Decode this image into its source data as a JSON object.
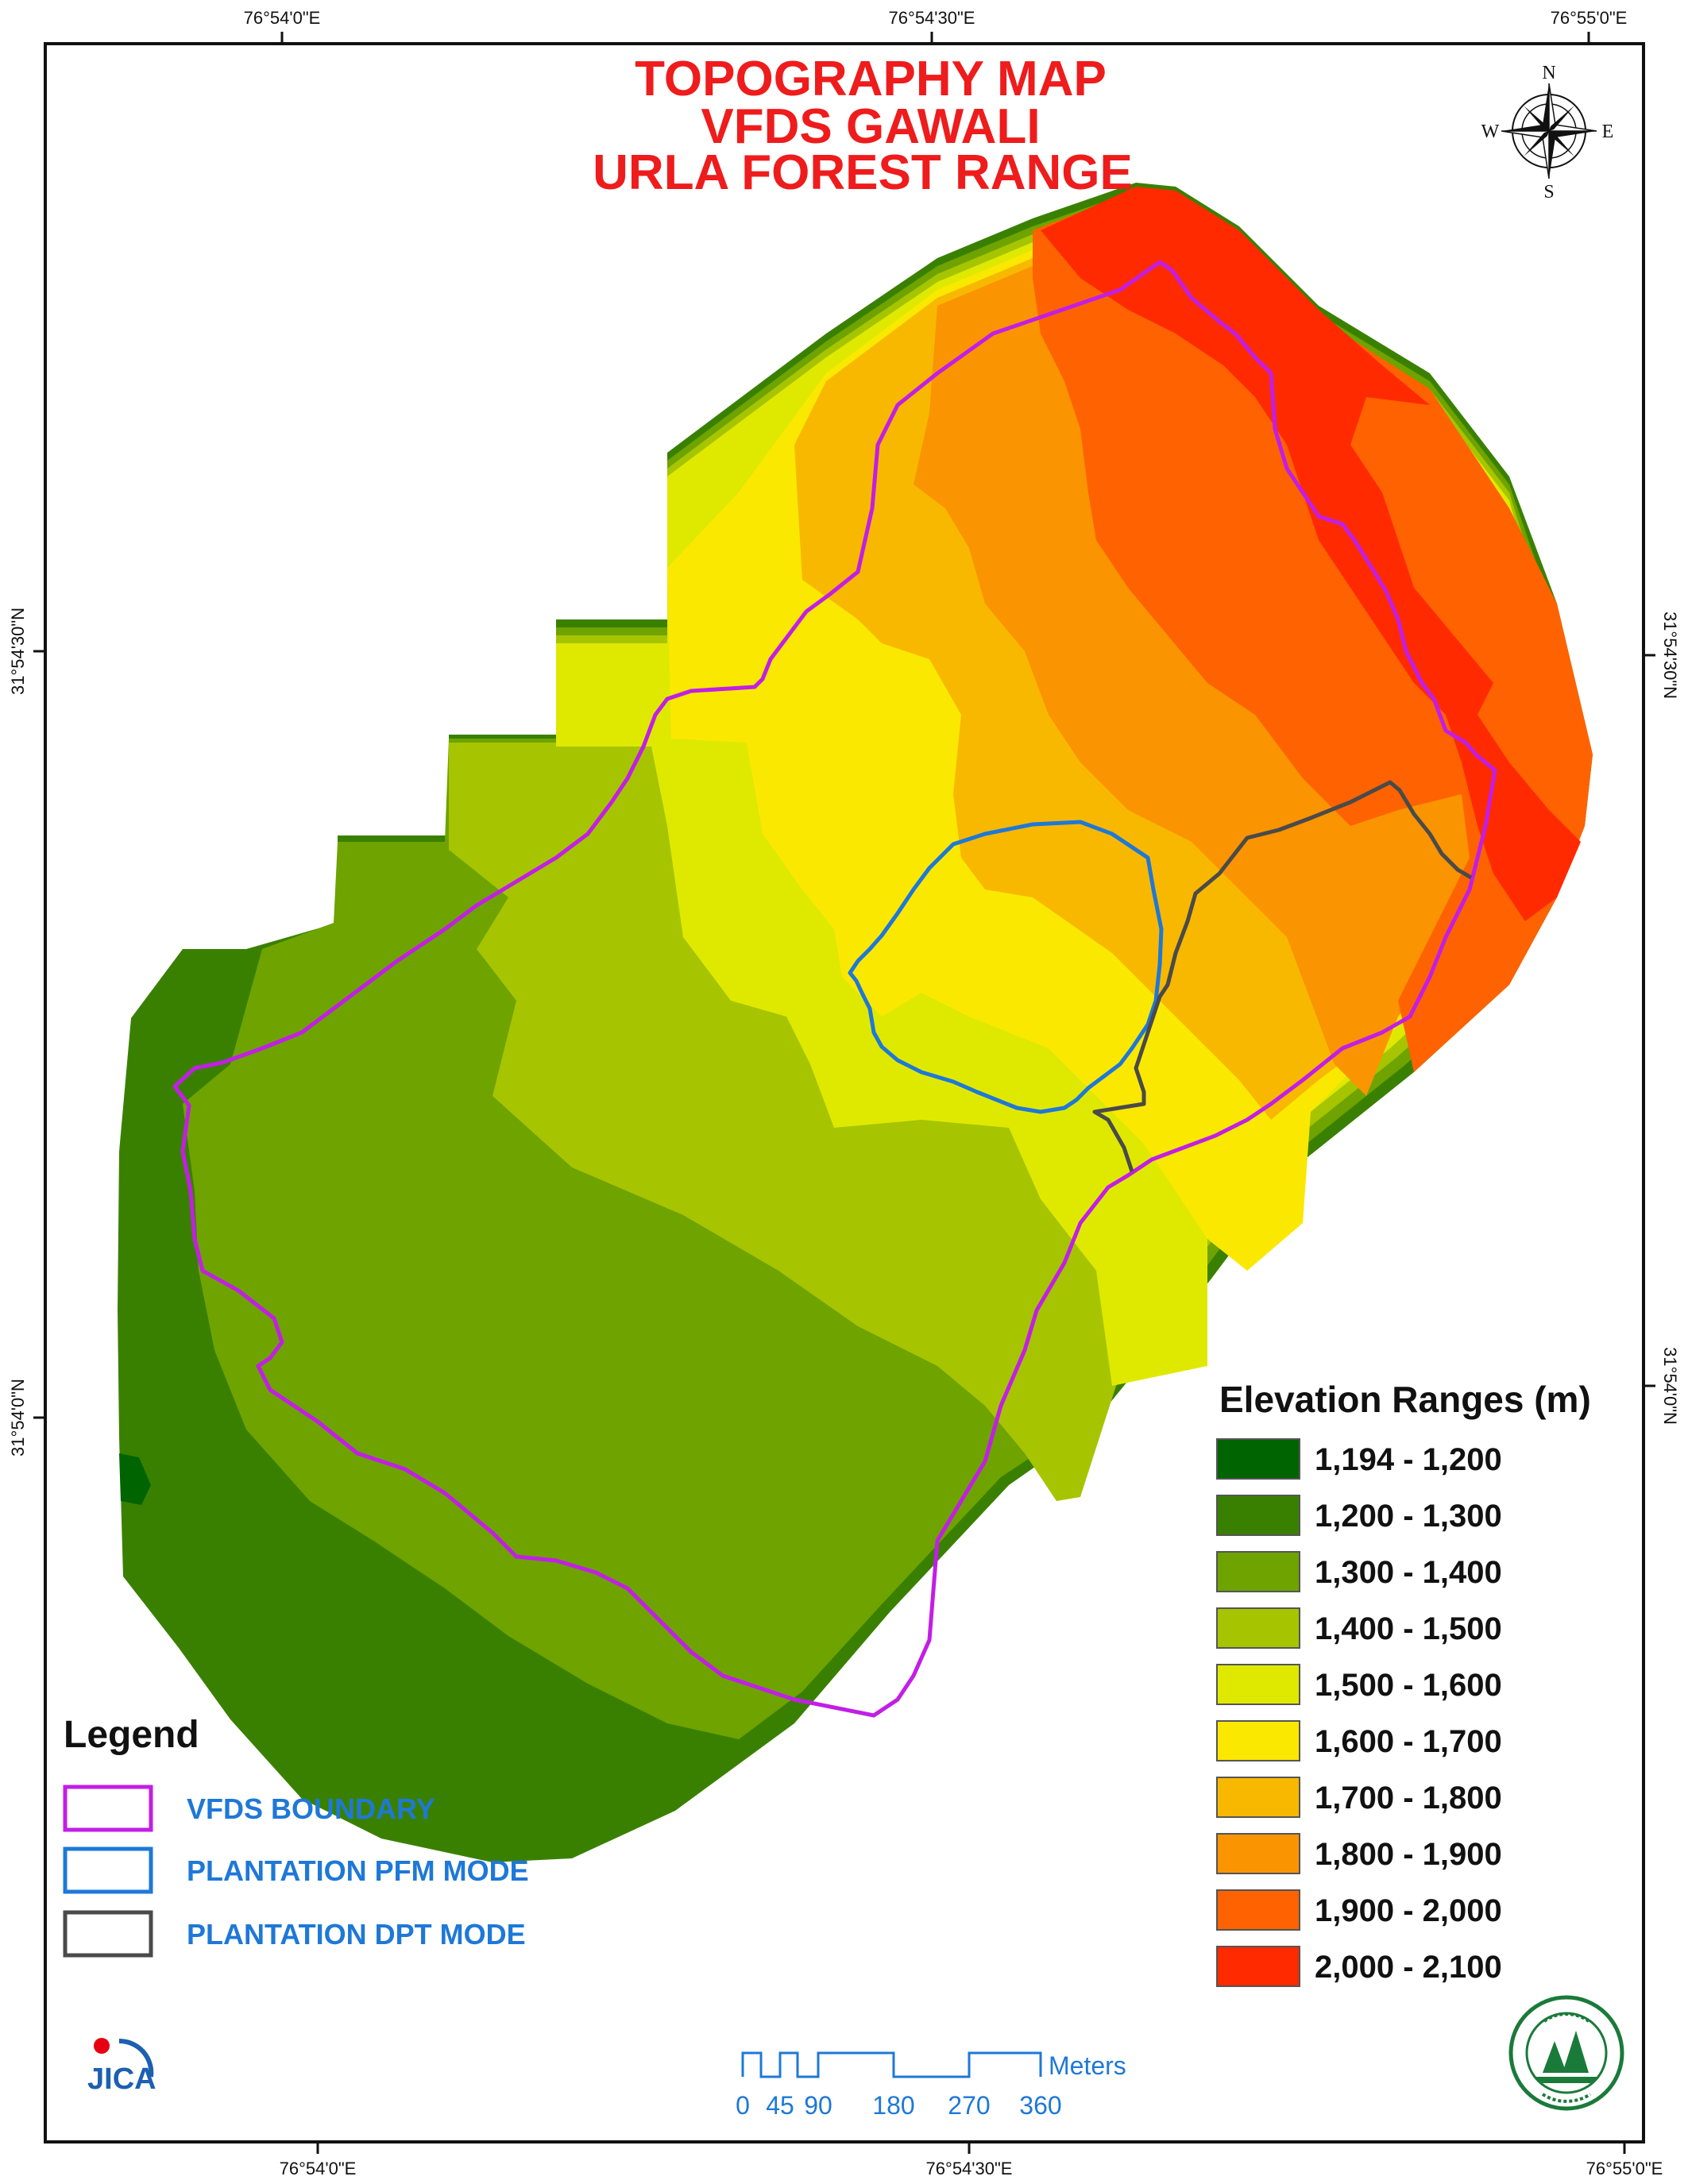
{
  "title": {
    "line1": "TOPOGRAPHY MAP",
    "line2": "VFDS GAWALI",
    "line3": "URLA FOREST RANGE"
  },
  "coordinates": {
    "top": [
      "76°54'0\"E",
      "76°54'30\"E",
      "76°55'0\"E"
    ],
    "bottom": [
      "76°54'0\"E",
      "76°54'30\"E",
      "76°55'0\"E"
    ],
    "left": [
      "31°54'30\"N",
      "31°54'0\"N"
    ],
    "right": [
      "31°54'30\"N",
      "31°54'0\"N"
    ]
  },
  "compass": {
    "n": "N",
    "s": "S",
    "e": "E",
    "w": "W"
  },
  "elevation": {
    "title": "Elevation Ranges (m)",
    "classes": [
      {
        "label": "1,194 - 1,200",
        "color": "#006400"
      },
      {
        "label": "1,200 - 1,300",
        "color": "#3a8000"
      },
      {
        "label": "1,300 - 1,400",
        "color": "#6ea300"
      },
      {
        "label": "1,400 - 1,500",
        "color": "#a6c400"
      },
      {
        "label": "1,500 - 1,600",
        "color": "#dfe900"
      },
      {
        "label": "1,600 - 1,700",
        "color": "#fbe800"
      },
      {
        "label": "1,700 - 1,800",
        "color": "#f8b800"
      },
      {
        "label": "1,800 - 1,900",
        "color": "#fa9400"
      },
      {
        "label": "1,900 - 2,000",
        "color": "#ff6200"
      },
      {
        "label": "2,000 - 2,100",
        "color": "#ff2a00"
      }
    ]
  },
  "legend": {
    "title": "Legend",
    "items": [
      {
        "label": "VFDS BOUNDARY",
        "color": "#c21ee6"
      },
      {
        "label": "PLANTATION PFM MODE",
        "color": "#1e78d8"
      },
      {
        "label": "PLANTATION DPT MODE",
        "color": "#4a4a4a"
      }
    ]
  },
  "scale": {
    "unit": "Meters",
    "ticks": [
      "0",
      "45",
      "90",
      "180",
      "270",
      "360"
    ]
  },
  "logos": {
    "left": "JICA",
    "right_icon": "forest-department-seal-icon"
  }
}
